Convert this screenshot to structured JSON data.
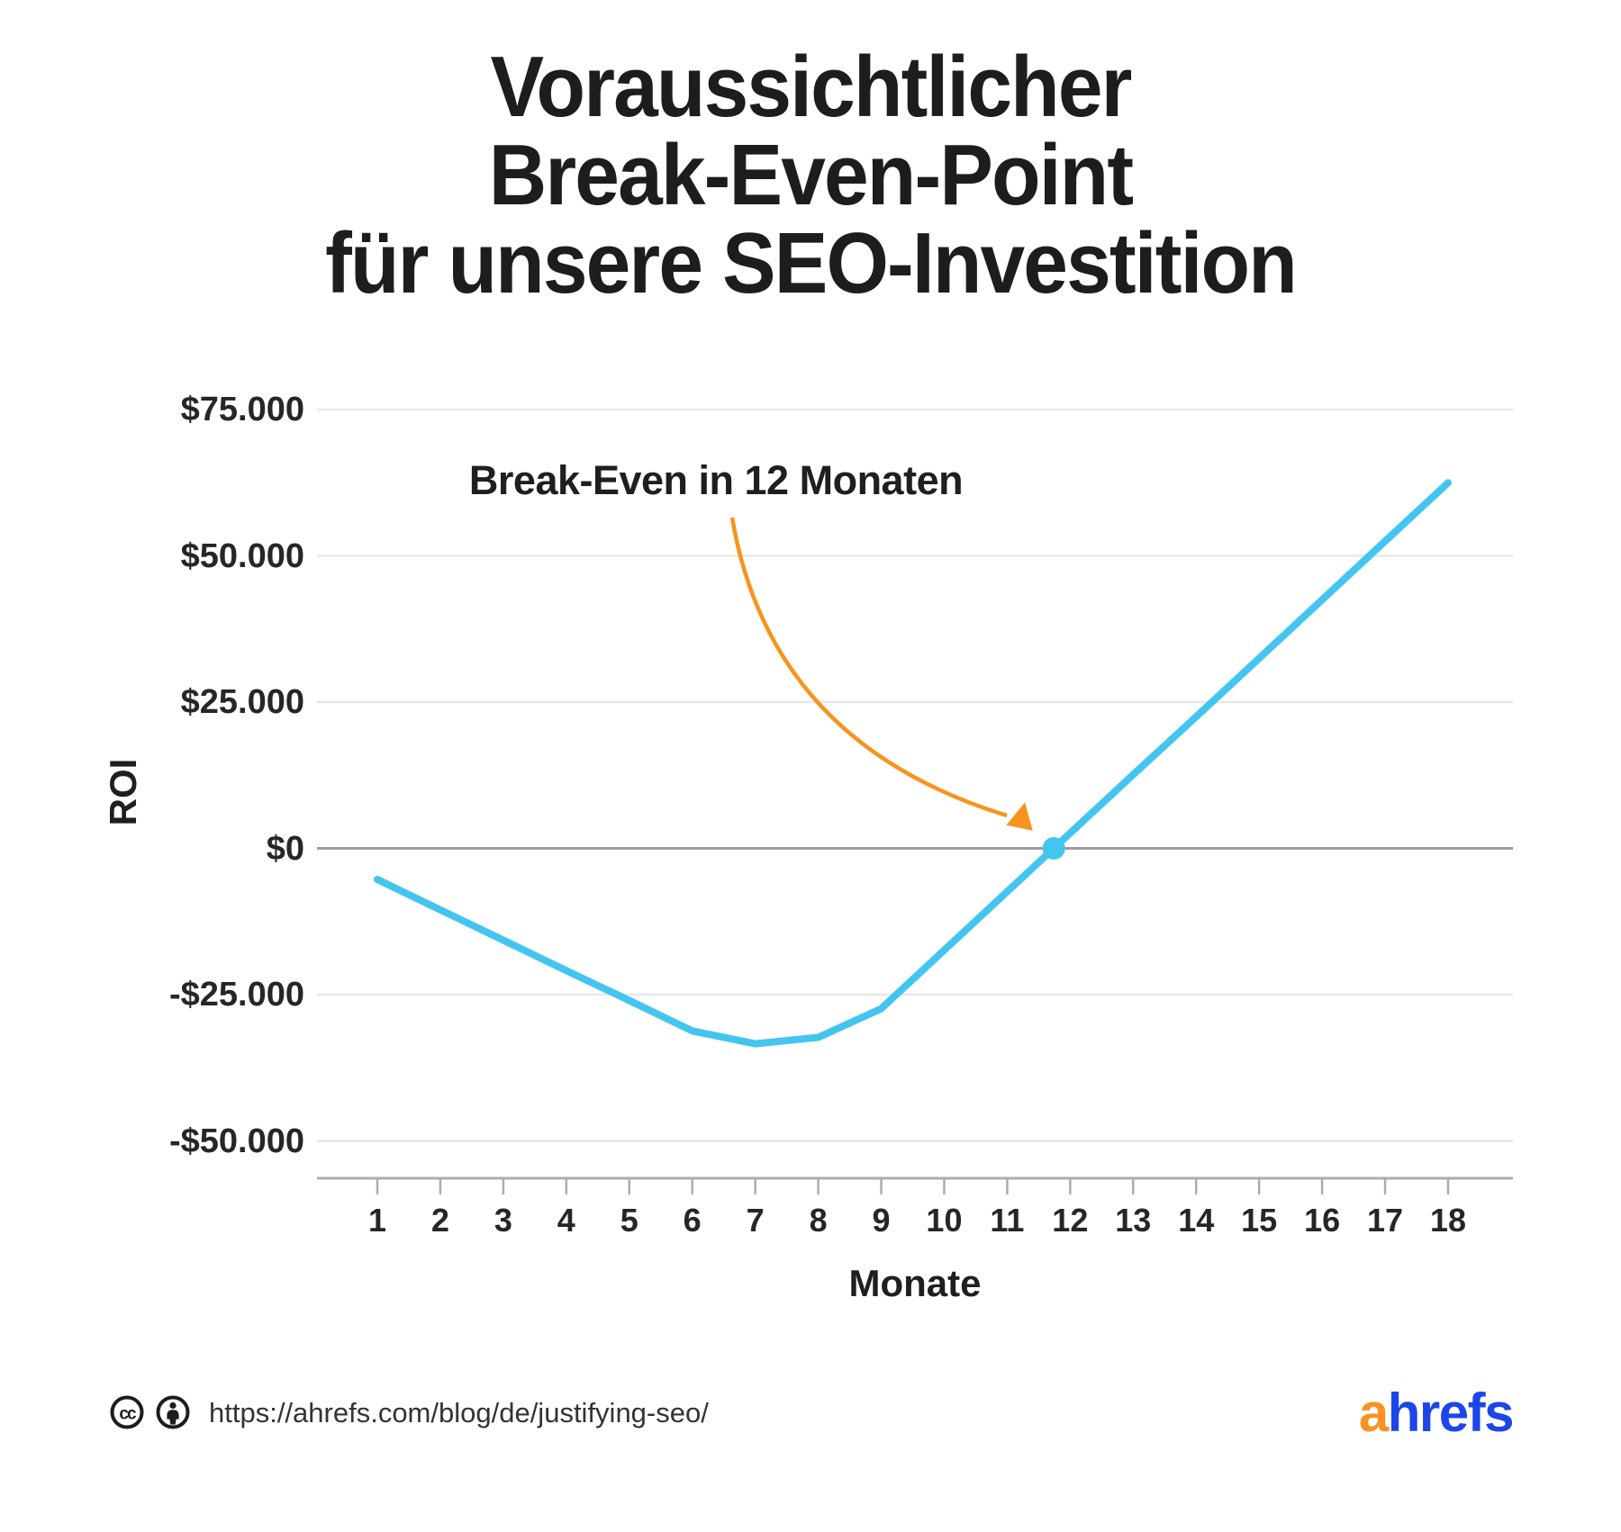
{
  "title": {
    "lines": [
      "Voraussichtlicher",
      "Break-Even-Point",
      "für unsere SEO-Investition"
    ]
  },
  "annotation": {
    "label": "Break-Even in 12 Monaten"
  },
  "chart_data": {
    "type": "line",
    "x": [
      1,
      2,
      3,
      4,
      5,
      6,
      7,
      8,
      9,
      10,
      11,
      12,
      13,
      14,
      15,
      16,
      17,
      18
    ],
    "series": [
      {
        "name": "ROI",
        "values": [
          -5300,
          -10500,
          -15700,
          -20900,
          -26000,
          -31200,
          -33400,
          -32300,
          -27400,
          -17400,
          -7400,
          2600,
          12600,
          22500,
          32500,
          42500,
          52500,
          62500
        ]
      }
    ],
    "xlabel": "Monate",
    "ylabel": "ROI",
    "y_ticks": [
      {
        "label": "$75.000",
        "value": 75000
      },
      {
        "label": "$50.000",
        "value": 50000
      },
      {
        "label": "$25.000",
        "value": 25000
      },
      {
        "label": "$0",
        "value": 0
      },
      {
        "label": "-$25.000",
        "value": -25000
      },
      {
        "label": "-$50.000",
        "value": -50000
      }
    ],
    "ylim": [
      -56000,
      80000
    ],
    "grid": "horizontal",
    "legend": "none",
    "break_even": {
      "month": 11.74,
      "value": 0,
      "annotation": "Break-Even in 12 Monaten"
    }
  },
  "footer": {
    "url": "https://ahrefs.com/blog/de/justifying-seo/",
    "license_icons": [
      "cc-icon",
      "attribution-icon"
    ],
    "logo": {
      "a": "a",
      "rest": "hrefs"
    }
  },
  "colors": {
    "line": "#43C5F0",
    "accent_orange": "#F7941E",
    "grid": "#E8E8E8",
    "zero_line": "#9C9C9C",
    "axis": "#ACACAC",
    "text": "#1d1d1d",
    "logo_orange": "#FB9222",
    "logo_blue": "#1C46E8"
  }
}
